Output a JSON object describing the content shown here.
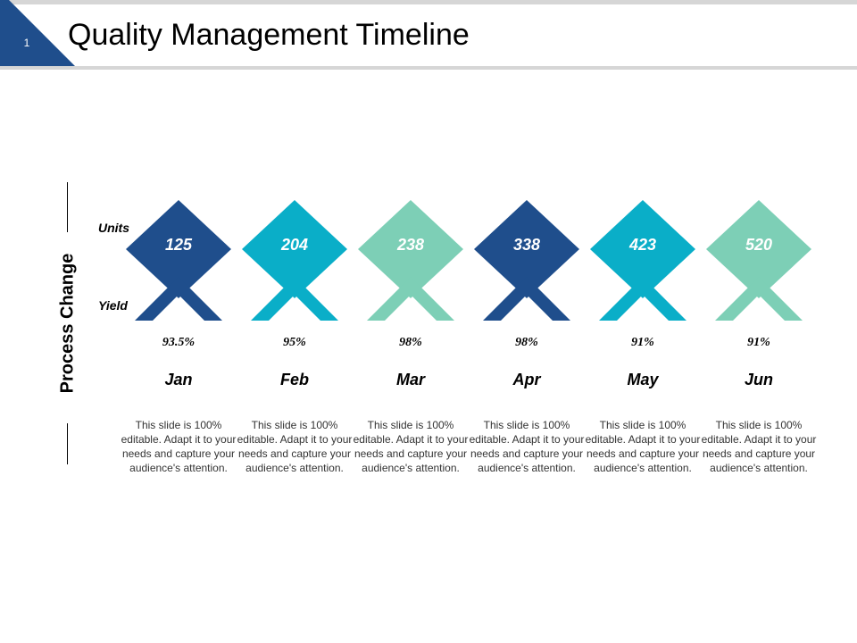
{
  "slide": {
    "number": "1",
    "title": "Quality Management Timeline",
    "side_label": "Process Change",
    "units_label": "Units",
    "yield_label": "Yield"
  },
  "colors": {
    "dark_blue": "#1f4e8c",
    "cyan": "#0aaec8",
    "mint": "#7dcfb6"
  },
  "milestones": [
    {
      "month": "Jan",
      "units": "125",
      "yield": "93.5%",
      "color": "#1f4e8c",
      "description": "This slide is 100% editable. Adapt it to your needs and capture your audience's attention."
    },
    {
      "month": "Feb",
      "units": "204",
      "yield": "95%",
      "color": "#0aaec8",
      "description": "This slide is 100% editable. Adapt it to your needs and capture your audience's attention."
    },
    {
      "month": "Mar",
      "units": "238",
      "yield": "98%",
      "color": "#7dcfb6",
      "description": "This slide is 100% editable. Adapt it to your needs and capture your audience's attention."
    },
    {
      "month": "Apr",
      "units": "338",
      "yield": "98%",
      "color": "#1f4e8c",
      "description": "This slide is 100% editable. Adapt it to your needs and capture your audience's attention."
    },
    {
      "month": "May",
      "units": "423",
      "yield": "91%",
      "color": "#0aaec8",
      "description": "This slide is 100% editable. Adapt it to your needs and capture your audience's attention."
    },
    {
      "month": "Jun",
      "units": "520",
      "yield": "91%",
      "color": "#7dcfb6",
      "description": "This slide is 100% editable. Adapt it to your needs and capture your audience's attention."
    }
  ]
}
